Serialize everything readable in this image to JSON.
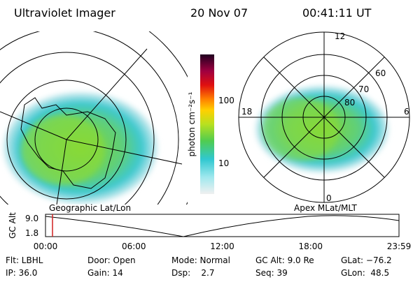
{
  "header": {
    "instrument": "Ultraviolet Imager",
    "date": "20 Nov 07",
    "time": "00:41:11 UT"
  },
  "colorbar": {
    "label": "photon cm⁻²s⁻¹",
    "ticks": [
      "100",
      "10"
    ]
  },
  "left_panel": {
    "label": "Geographic Lat/Lon"
  },
  "right_panel": {
    "label": "Apex MLat/MLT",
    "mlt_labels": [
      "12",
      "18",
      "6",
      "0"
    ],
    "mlat_labels": [
      "60",
      "70",
      "80"
    ]
  },
  "altitude_plot": {
    "axis_label": "GC Alt",
    "yticks": [
      "9.0",
      "1.8"
    ],
    "xticks": [
      "00:00",
      "06:00",
      "12:00",
      "18:00",
      "23:59"
    ]
  },
  "info": [
    [
      "Flt: LBHL",
      "Door: Open",
      "Mode: Normal",
      "GC Alt: 9.0 Re",
      "GLat: −76.2"
    ],
    [
      "IP: 36.0",
      "Gain: 14",
      "Dsp:    2.7",
      "Seq: 39",
      "GLon:  48.5"
    ]
  ]
}
